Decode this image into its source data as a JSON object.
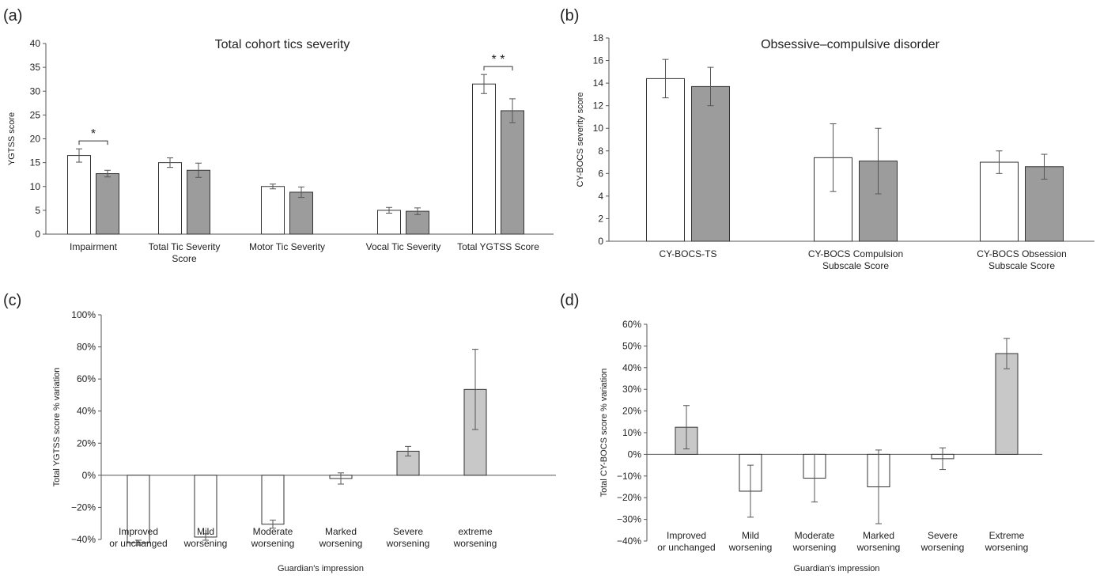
{
  "colors": {
    "white_bar": "#ffffff",
    "dark_gray_bar": "#9c9c9c",
    "light_gray_bar": "#c8c8c8",
    "edge": "#333333"
  },
  "chart_data": [
    {
      "panel": "(a)",
      "type": "bar",
      "title": "Total cohort tics severity",
      "xlabel": "",
      "ylabel": "YGTSS score",
      "ylim": [
        0,
        40
      ],
      "yticks": [
        0,
        5,
        10,
        15,
        20,
        25,
        30,
        35,
        40
      ],
      "ytick_labels": [
        "0",
        "5",
        "10",
        "15",
        "20",
        "25",
        "30",
        "35",
        "40"
      ],
      "categories": [
        "Impairment",
        "Total Tic Severity\nScore",
        "Motor Tic Severity",
        "Vocal Tic Severity",
        "Total YGTSS Score"
      ],
      "series": [
        {
          "values": [
            16.5,
            15.0,
            10.0,
            5.0,
            31.5
          ],
          "errors": [
            1.4,
            1.0,
            0.5,
            0.6,
            2.0
          ],
          "color": "#ffffff"
        },
        {
          "values": [
            12.7,
            13.4,
            8.8,
            4.8,
            25.9
          ],
          "errors": [
            0.7,
            1.5,
            1.1,
            0.7,
            2.5
          ],
          "color": "#9c9c9c"
        }
      ],
      "significance": [
        {
          "category": 0,
          "label": "*"
        },
        {
          "category": 4,
          "label": "* *"
        }
      ],
      "grid": false,
      "legend": "none"
    },
    {
      "panel": "(b)",
      "type": "bar",
      "title": "Obsessive–compulsive disorder",
      "xlabel": "",
      "ylabel": "CY-BOCS severity score",
      "ylim": [
        0,
        18
      ],
      "yticks": [
        0,
        2,
        4,
        6,
        8,
        10,
        12,
        14,
        16,
        18
      ],
      "ytick_labels": [
        "0",
        "2",
        "4",
        "6",
        "8",
        "10",
        "12",
        "14",
        "16",
        "18"
      ],
      "categories": [
        "CY-BOCS-TS",
        "CY-BOCS Compulsion\nSubscale Score",
        "CY-BOCS Obsession\nSubscale Score"
      ],
      "series": [
        {
          "values": [
            14.4,
            7.4,
            7.0
          ],
          "errors": [
            1.7,
            3.0,
            1.0
          ],
          "color": "#ffffff"
        },
        {
          "values": [
            13.7,
            7.1,
            6.6
          ],
          "errors": [
            1.7,
            2.9,
            1.1
          ],
          "color": "#9c9c9c"
        }
      ],
      "grid": false,
      "legend": "none"
    },
    {
      "panel": "(c)",
      "type": "bar",
      "title": "",
      "xlabel": "Guardian's impression",
      "ylabel": "Total YGTSS score % variation",
      "ylim": [
        -40,
        100
      ],
      "yticks": [
        -40,
        -20,
        0,
        20,
        40,
        60,
        80,
        100
      ],
      "ytick_labels": [
        "−40%",
        "−20%",
        "0%",
        "20%",
        "40%",
        "60%",
        "80%",
        "100%"
      ],
      "categories": [
        "Improved\nor unchanged",
        "Mild\nworsening",
        "Moderate\nworsening",
        "Marked\nworsening",
        "Severe\nworsening",
        "extreme\nworsening"
      ],
      "series": [
        {
          "values": [
            -42,
            -38.5,
            -30.5,
            -2,
            15,
            53.5
          ],
          "errors": [
            1.5,
            2.0,
            2.5,
            3.5,
            3.0,
            25
          ],
          "colors": [
            "#ffffff",
            "#ffffff",
            "#ffffff",
            "#ffffff",
            "#c8c8c8",
            "#c8c8c8"
          ]
        }
      ],
      "grid": false,
      "legend": "none"
    },
    {
      "panel": "(d)",
      "type": "bar",
      "title": "",
      "xlabel": "Guardian's impression",
      "ylabel": "Total CY-BOCS score % variation",
      "ylim": [
        -40,
        60
      ],
      "yticks": [
        -40,
        -30,
        -20,
        -10,
        0,
        10,
        20,
        30,
        40,
        50,
        60
      ],
      "ytick_labels": [
        "−40%",
        "−30%",
        "−20%",
        "−10%",
        "0%",
        "10%",
        "20%",
        "30%",
        "40%",
        "50%",
        "60%"
      ],
      "categories": [
        "Improved\nor unchanged",
        "Mild\nworsening",
        "Moderate\nworsening",
        "Marked\nworsening",
        "Severe\nworsening",
        "Extreme\nworsening"
      ],
      "series": [
        {
          "values": [
            12.5,
            -17,
            -11,
            -15,
            -2,
            46.5
          ],
          "errors": [
            10,
            12,
            11,
            17,
            5,
            7
          ],
          "colors": [
            "#c8c8c8",
            "#ffffff",
            "#ffffff",
            "#ffffff",
            "#ffffff",
            "#c8c8c8"
          ]
        }
      ],
      "grid": false,
      "legend": "none"
    }
  ]
}
